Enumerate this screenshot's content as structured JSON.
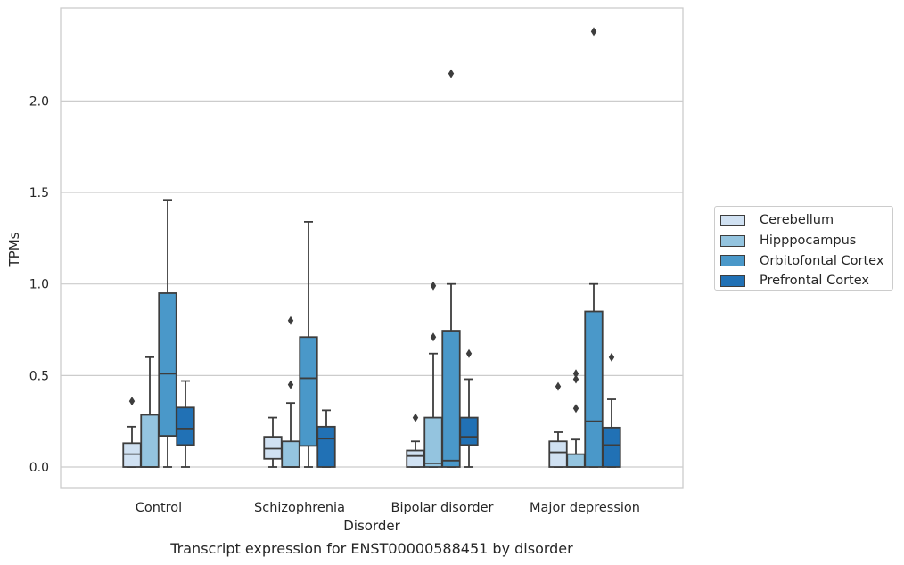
{
  "chart_data": {
    "type": "box",
    "xlabel": "Disorder",
    "ylabel": "TPMs",
    "caption": "Transcript expression for ENST00000588451 by disorder",
    "ylim": [
      -0.12,
      2.5
    ],
    "yticks": [
      "0.0",
      "0.5",
      "1.0",
      "1.5",
      "2.0"
    ],
    "grid": "horizontal",
    "legend_placement": "right",
    "categories": [
      "Control",
      "Schizophrenia",
      "Bipolar disorder",
      "Major depression"
    ],
    "series": [
      {
        "name": "Cerebellum",
        "color": "#d0e1f2",
        "boxes": [
          {
            "whislo": 0.0,
            "q1": 0.0,
            "med": 0.07,
            "q3": 0.13,
            "whishi": 0.22,
            "fliers": [
              0.36
            ]
          },
          {
            "whislo": 0.0,
            "q1": 0.045,
            "med": 0.1,
            "q3": 0.165,
            "whishi": 0.27,
            "fliers": []
          },
          {
            "whislo": 0.0,
            "q1": 0.0,
            "med": 0.06,
            "q3": 0.09,
            "whishi": 0.14,
            "fliers": [
              0.27
            ]
          },
          {
            "whislo": 0.0,
            "q1": 0.0,
            "med": 0.08,
            "q3": 0.14,
            "whishi": 0.19,
            "fliers": [
              0.44
            ]
          }
        ]
      },
      {
        "name": "Hipppocampus",
        "color": "#94c4df",
        "boxes": [
          {
            "whislo": 0.0,
            "q1": 0.0,
            "med": 0.0,
            "q3": 0.285,
            "whishi": 0.6,
            "fliers": []
          },
          {
            "whislo": 0.0,
            "q1": 0.0,
            "med": 0.0,
            "q3": 0.14,
            "whishi": 0.35,
            "fliers": [
              0.45,
              0.8
            ]
          },
          {
            "whislo": 0.0,
            "q1": 0.0,
            "med": 0.02,
            "q3": 0.27,
            "whishi": 0.62,
            "fliers": [
              0.71,
              0.99
            ]
          },
          {
            "whislo": 0.0,
            "q1": 0.0,
            "med": 0.0,
            "q3": 0.07,
            "whishi": 0.15,
            "fliers": [
              0.32,
              0.48,
              0.51
            ]
          }
        ]
      },
      {
        "name": "Orbitofontal Cortex",
        "color": "#4a98c9",
        "boxes": [
          {
            "whislo": 0.0,
            "q1": 0.17,
            "med": 0.51,
            "q3": 0.95,
            "whishi": 1.46,
            "fliers": []
          },
          {
            "whislo": 0.0,
            "q1": 0.115,
            "med": 0.485,
            "q3": 0.71,
            "whishi": 1.34,
            "fliers": []
          },
          {
            "whislo": 0.0,
            "q1": 0.0,
            "med": 0.035,
            "q3": 0.745,
            "whishi": 1.0,
            "fliers": [
              2.15
            ]
          },
          {
            "whislo": 0.0,
            "q1": 0.0,
            "med": 0.25,
            "q3": 0.85,
            "whishi": 1.0,
            "fliers": [
              2.38
            ]
          }
        ]
      },
      {
        "name": "Prefrontal Cortex",
        "color": "#2171b5",
        "boxes": [
          {
            "whislo": 0.0,
            "q1": 0.12,
            "med": 0.21,
            "q3": 0.325,
            "whishi": 0.47,
            "fliers": []
          },
          {
            "whislo": 0.0,
            "q1": 0.0,
            "med": 0.155,
            "q3": 0.22,
            "whishi": 0.31,
            "fliers": []
          },
          {
            "whislo": 0.0,
            "q1": 0.12,
            "med": 0.165,
            "q3": 0.27,
            "whishi": 0.48,
            "fliers": [
              0.62
            ]
          },
          {
            "whislo": 0.0,
            "q1": 0.0,
            "med": 0.12,
            "q3": 0.215,
            "whishi": 0.37,
            "fliers": [
              0.6
            ]
          }
        ]
      }
    ]
  }
}
